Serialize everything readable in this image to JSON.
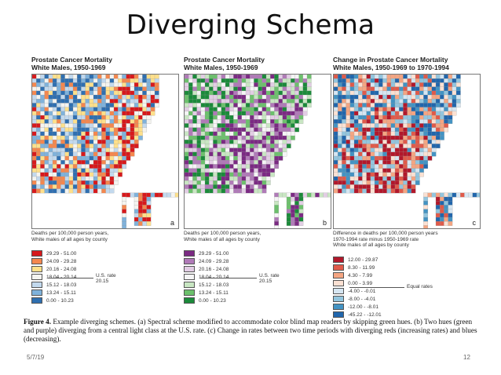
{
  "slide": {
    "title": "Diverging Schema",
    "date": "5/7/19",
    "page_number": "12"
  },
  "panels": [
    {
      "title_line1": "Prostate Cancer Mortality",
      "title_line2": "White Males, 1950-1969",
      "letter": "a",
      "legend_caption_line1": "Deaths per 100,000 person years,",
      "legend_caption_line2": "White males of all ages by county",
      "us_rate_label": "U.S. rate",
      "us_rate_value": "20.15",
      "legend": [
        {
          "label": "29.29 - 51.00",
          "color": "#d7191c"
        },
        {
          "label": "24.09 - 29.28",
          "color": "#f4874e"
        },
        {
          "label": "20.16 - 24.08",
          "color": "#fee08b"
        },
        {
          "label": "18.04 - 20.14",
          "color": "#f4f4f0"
        },
        {
          "label": "15.12 - 18.03",
          "color": "#c2d9ee"
        },
        {
          "label": "13.24 - 15.11",
          "color": "#7fb2db"
        },
        {
          "label": "0.00 - 10.23",
          "color": "#2f6fb0"
        }
      ]
    },
    {
      "title_line1": "Prostate Cancer Mortality",
      "title_line2": "White Males, 1950-1969",
      "letter": "b",
      "legend_caption_line1": "Deaths per 100,000 person years,",
      "legend_caption_line2": "White males of all ages by county",
      "us_rate_label": "U.S. rate",
      "us_rate_value": "20.15",
      "legend": [
        {
          "label": "29.29 - 51.00",
          "color": "#7b2a83"
        },
        {
          "label": "24.09 - 29.28",
          "color": "#b07ab8"
        },
        {
          "label": "20.16 - 24.08",
          "color": "#e2cde4"
        },
        {
          "label": "18.04 - 20.14",
          "color": "#f5f5f5"
        },
        {
          "label": "15.12 - 18.03",
          "color": "#c8e6c2"
        },
        {
          "label": "13.24 - 15.11",
          "color": "#6cc06c"
        },
        {
          "label": "0.00 - 10.23",
          "color": "#1b8a3a"
        }
      ]
    },
    {
      "title_line1": "Change in Prostate Cancer Mortality",
      "title_line2": "White Males, 1950-1969 to 1970-1994",
      "letter": "c",
      "legend_caption_line1": "Difference in deaths per 100,000 person years",
      "legend_caption_line2": "1970-1994 rate minus 1950-1969 rate",
      "legend_caption_line3": "White males of all ages by county",
      "equal_rates_label": "Equal rates",
      "legend": [
        {
          "label": "12.00 - 29.87",
          "color": "#b2182b"
        },
        {
          "label": "8.30 - 11.99",
          "color": "#e05a4a"
        },
        {
          "label": "4.30 - 7.99",
          "color": "#f4a582"
        },
        {
          "label": "0.00 - 3.99",
          "color": "#fbe1d3"
        },
        {
          "label": "-4.00 - -0.01",
          "color": "#d6e6f2"
        },
        {
          "label": "-8.00 - -4.01",
          "color": "#92c5de"
        },
        {
          "label": "-12.00 - -8.01",
          "color": "#4393c3"
        },
        {
          "label": "-45.22 - -12.01",
          "color": "#2166ac"
        }
      ]
    }
  ],
  "caption": {
    "figure_label": "Figure 4.",
    "text": "Example diverging schemes. (a) Spectral scheme modified to accommodate color blind map readers by skipping green hues. (b) Two hues (green and purple) diverging from a central light class at the U.S. rate. (c) Change in rates between two time periods with diverging reds (increasing rates) and blues (decreasing)."
  }
}
